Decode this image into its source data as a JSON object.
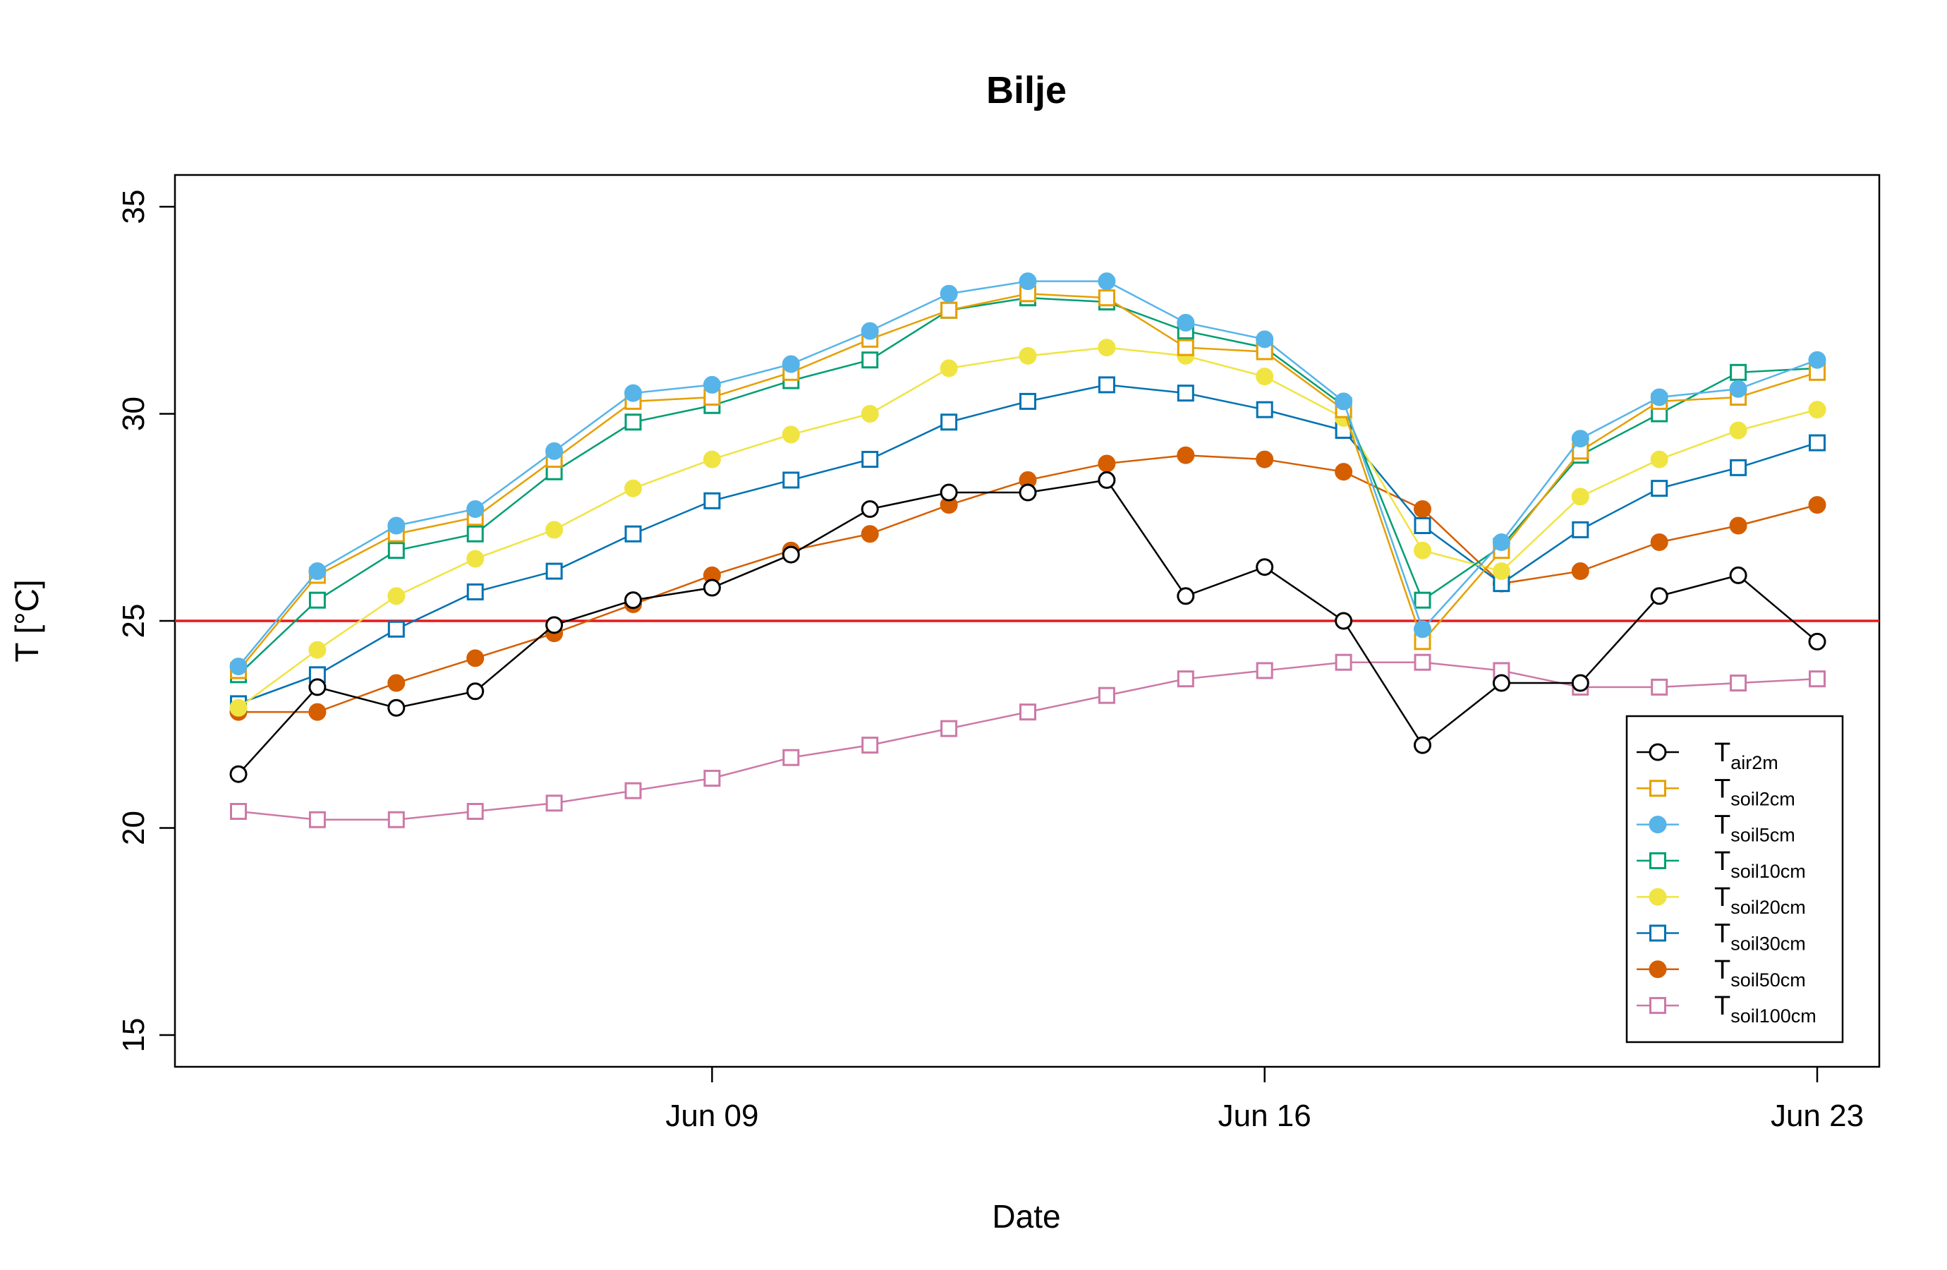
{
  "chart_data": {
    "type": "line",
    "title": "Bilje",
    "xlabel": "Date",
    "ylabel": "T [°C]",
    "ylim": [
      15,
      35
    ],
    "xlim": [
      "2024-06-03",
      "2024-06-23"
    ],
    "yticks": [
      15,
      20,
      25,
      30,
      35
    ],
    "xticks": [
      {
        "date": "2024-06-09",
        "label": "Jun 09"
      },
      {
        "date": "2024-06-16",
        "label": "Jun 16"
      },
      {
        "date": "2024-06-23",
        "label": "Jun 23"
      }
    ],
    "x": [
      "2024-06-03",
      "2024-06-04",
      "2024-06-05",
      "2024-06-06",
      "2024-06-07",
      "2024-06-08",
      "2024-06-09",
      "2024-06-10",
      "2024-06-11",
      "2024-06-12",
      "2024-06-13",
      "2024-06-14",
      "2024-06-15",
      "2024-06-16",
      "2024-06-17",
      "2024-06-18",
      "2024-06-19",
      "2024-06-20",
      "2024-06-21",
      "2024-06-22",
      "2024-06-23"
    ],
    "reference_line": {
      "y": 25,
      "color": "#e31a1c"
    },
    "legend_position": "bottom-right",
    "grid": false,
    "series": [
      {
        "name": "T",
        "subscript": "air2m",
        "color": "#000000",
        "marker": "open-circle",
        "values": [
          21.3,
          23.4,
          22.9,
          23.3,
          24.9,
          25.5,
          25.8,
          26.6,
          27.7,
          28.1,
          28.1,
          28.4,
          25.6,
          26.3,
          25.0,
          22.0,
          23.5,
          23.5,
          25.6,
          26.1,
          24.5
        ]
      },
      {
        "name": "T",
        "subscript": "soil2cm",
        "color": "#e69f00",
        "marker": "open-square",
        "values": [
          23.8,
          26.1,
          27.1,
          27.5,
          28.9,
          30.3,
          30.4,
          31.0,
          31.8,
          32.5,
          32.9,
          32.8,
          31.6,
          31.5,
          30.1,
          24.5,
          26.7,
          29.1,
          30.3,
          30.4,
          31.0
        ]
      },
      {
        "name": "T",
        "subscript": "soil5cm",
        "color": "#56b4e9",
        "marker": "filled-circle",
        "values": [
          23.9,
          26.2,
          27.3,
          27.7,
          29.1,
          30.5,
          30.7,
          31.2,
          32.0,
          32.9,
          33.2,
          33.2,
          32.2,
          31.8,
          30.3,
          24.8,
          26.9,
          29.4,
          30.4,
          30.6,
          31.3
        ]
      },
      {
        "name": "T",
        "subscript": "soil10cm",
        "color": "#009e73",
        "marker": "open-square",
        "values": [
          23.7,
          25.5,
          26.7,
          27.1,
          28.6,
          29.8,
          30.2,
          30.8,
          31.3,
          32.5,
          32.8,
          32.7,
          32.0,
          31.6,
          30.2,
          25.5,
          26.8,
          29.0,
          30.0,
          31.0,
          31.1
        ]
      },
      {
        "name": "T",
        "subscript": "soil20cm",
        "color": "#f0e442",
        "marker": "filled-circle",
        "values": [
          22.9,
          24.3,
          25.6,
          26.5,
          27.2,
          28.2,
          28.9,
          29.5,
          30.0,
          31.1,
          31.4,
          31.6,
          31.4,
          30.9,
          29.9,
          26.7,
          26.2,
          28.0,
          28.9,
          29.6,
          30.1
        ]
      },
      {
        "name": "T",
        "subscript": "soil30cm",
        "color": "#0072b2",
        "marker": "open-square",
        "values": [
          23.0,
          23.7,
          24.8,
          25.7,
          26.2,
          27.1,
          27.9,
          28.4,
          28.9,
          29.8,
          30.3,
          30.7,
          30.5,
          30.1,
          29.6,
          27.3,
          25.9,
          27.2,
          28.2,
          28.7,
          29.3
        ]
      },
      {
        "name": "T",
        "subscript": "soil50cm",
        "color": "#d55e00",
        "marker": "filled-circle",
        "values": [
          22.8,
          22.8,
          23.5,
          24.1,
          24.7,
          25.4,
          26.1,
          26.7,
          27.1,
          27.8,
          28.4,
          28.8,
          29.0,
          28.9,
          28.6,
          27.7,
          25.9,
          26.2,
          26.9,
          27.3,
          27.8
        ]
      },
      {
        "name": "T",
        "subscript": "soil100cm",
        "color": "#cc79a7",
        "marker": "open-square",
        "values": [
          20.4,
          20.2,
          20.2,
          20.4,
          20.6,
          20.9,
          21.2,
          21.7,
          22.0,
          22.4,
          22.8,
          23.2,
          23.6,
          23.8,
          24.0,
          24.0,
          23.8,
          23.4,
          23.4,
          23.5,
          23.6
        ]
      }
    ]
  }
}
